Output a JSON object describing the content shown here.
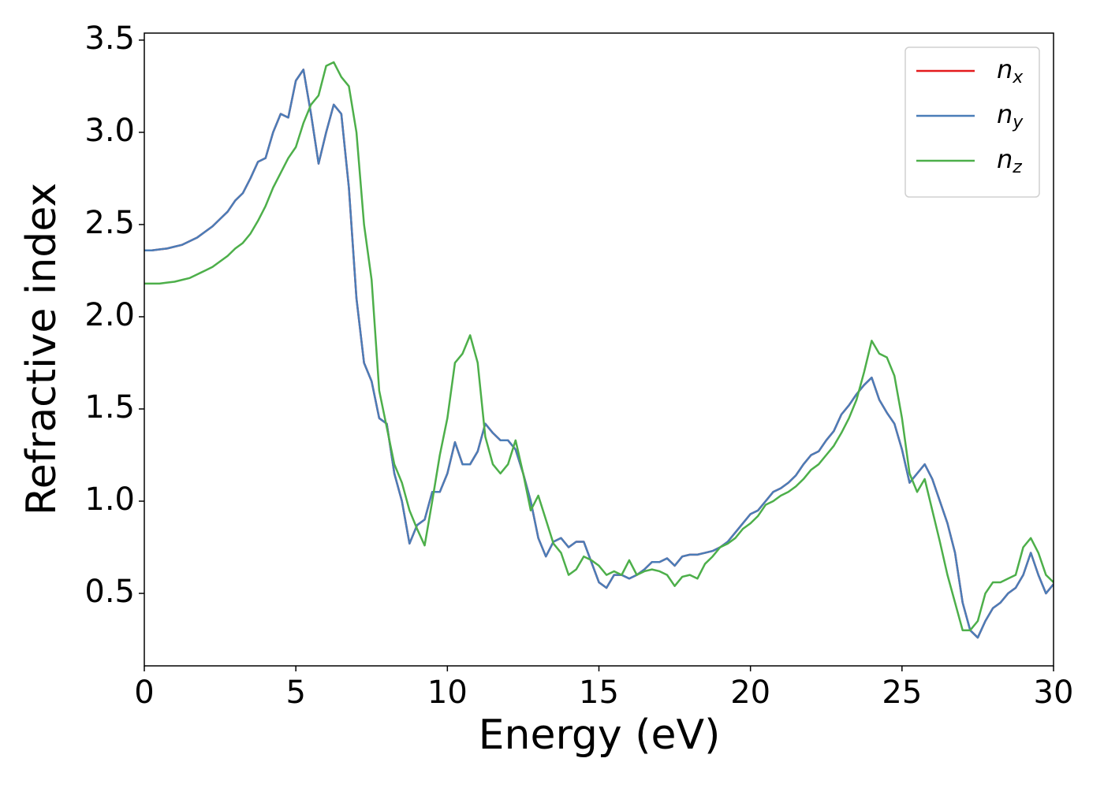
{
  "chart_data": {
    "type": "line",
    "xlabel": "Energy (eV)",
    "ylabel": "Refractive index",
    "x": [
      0,
      0.25,
      0.5,
      0.75,
      1,
      1.25,
      1.5,
      1.75,
      2,
      2.25,
      2.5,
      2.75,
      3,
      3.25,
      3.5,
      3.75,
      4,
      4.25,
      4.5,
      4.75,
      5,
      5.25,
      5.5,
      5.75,
      6,
      6.25,
      6.5,
      6.75,
      7,
      7.25,
      7.5,
      7.75,
      8,
      8.25,
      8.5,
      8.75,
      9,
      9.25,
      9.5,
      9.75,
      10,
      10.25,
      10.5,
      10.75,
      11,
      11.25,
      11.5,
      11.75,
      12,
      12.25,
      12.5,
      12.75,
      13,
      13.25,
      13.5,
      13.75,
      14,
      14.25,
      14.5,
      14.75,
      15,
      15.25,
      15.5,
      15.75,
      16,
      16.25,
      16.5,
      16.75,
      17,
      17.25,
      17.5,
      17.75,
      18,
      18.25,
      18.5,
      18.75,
      19,
      19.25,
      19.5,
      19.75,
      20,
      20.25,
      20.5,
      20.75,
      21,
      21.25,
      21.5,
      21.75,
      22,
      22.25,
      22.5,
      22.75,
      23,
      23.25,
      23.5,
      23.75,
      24,
      24.25,
      24.5,
      24.75,
      25,
      25.25,
      25.5,
      25.75,
      26,
      26.25,
      26.5,
      26.75,
      27,
      27.25,
      27.5,
      27.75,
      28,
      28.25,
      28.5,
      28.75,
      29,
      29.25,
      29.5,
      29.75,
      30
    ],
    "series": [
      {
        "name": "nx",
        "color": "#e41a1c",
        "values": [
          2.36,
          2.36,
          2.365,
          2.37,
          2.38,
          2.39,
          2.41,
          2.43,
          2.46,
          2.49,
          2.53,
          2.57,
          2.63,
          2.67,
          2.75,
          2.84,
          2.86,
          3.0,
          3.1,
          3.08,
          3.28,
          3.34,
          3.1,
          2.83,
          3.0,
          3.15,
          3.1,
          2.7,
          2.1,
          1.75,
          1.65,
          1.45,
          1.42,
          1.15,
          1.0,
          0.77,
          0.87,
          0.9,
          1.05,
          1.05,
          1.15,
          1.32,
          1.2,
          1.2,
          1.27,
          1.42,
          1.37,
          1.33,
          1.33,
          1.28,
          1.15,
          1.0,
          0.8,
          0.7,
          0.78,
          0.8,
          0.75,
          0.78,
          0.78,
          0.67,
          0.56,
          0.53,
          0.6,
          0.6,
          0.58,
          0.6,
          0.63,
          0.67,
          0.67,
          0.69,
          0.65,
          0.7,
          0.71,
          0.71,
          0.72,
          0.73,
          0.75,
          0.78,
          0.83,
          0.88,
          0.93,
          0.95,
          1.0,
          1.05,
          1.07,
          1.1,
          1.14,
          1.2,
          1.25,
          1.27,
          1.33,
          1.38,
          1.47,
          1.52,
          1.58,
          1.63,
          1.67,
          1.55,
          1.48,
          1.42,
          1.28,
          1.1,
          1.15,
          1.2,
          1.12,
          1.0,
          0.88,
          0.72,
          0.45,
          0.3,
          0.26,
          0.35,
          0.42,
          0.45,
          0.5,
          0.53,
          0.6,
          0.72,
          0.6,
          0.5,
          0.55
        ]
      },
      {
        "name": "ny",
        "color": "#4a7db8",
        "values": [
          2.36,
          2.36,
          2.365,
          2.37,
          2.38,
          2.39,
          2.41,
          2.43,
          2.46,
          2.49,
          2.53,
          2.57,
          2.63,
          2.67,
          2.75,
          2.84,
          2.86,
          3.0,
          3.1,
          3.08,
          3.28,
          3.34,
          3.1,
          2.83,
          3.0,
          3.15,
          3.1,
          2.7,
          2.1,
          1.75,
          1.65,
          1.45,
          1.42,
          1.15,
          1.0,
          0.77,
          0.87,
          0.9,
          1.05,
          1.05,
          1.15,
          1.32,
          1.2,
          1.2,
          1.27,
          1.42,
          1.37,
          1.33,
          1.33,
          1.28,
          1.15,
          1.0,
          0.8,
          0.7,
          0.78,
          0.8,
          0.75,
          0.78,
          0.78,
          0.67,
          0.56,
          0.53,
          0.6,
          0.6,
          0.58,
          0.6,
          0.63,
          0.67,
          0.67,
          0.69,
          0.65,
          0.7,
          0.71,
          0.71,
          0.72,
          0.73,
          0.75,
          0.78,
          0.83,
          0.88,
          0.93,
          0.95,
          1.0,
          1.05,
          1.07,
          1.1,
          1.14,
          1.2,
          1.25,
          1.27,
          1.33,
          1.38,
          1.47,
          1.52,
          1.58,
          1.63,
          1.67,
          1.55,
          1.48,
          1.42,
          1.28,
          1.1,
          1.15,
          1.2,
          1.12,
          1.0,
          0.88,
          0.72,
          0.45,
          0.3,
          0.26,
          0.35,
          0.42,
          0.45,
          0.5,
          0.53,
          0.6,
          0.72,
          0.6,
          0.5,
          0.55
        ]
      },
      {
        "name": "nz",
        "color": "#4daf4a",
        "values": [
          2.18,
          2.18,
          2.18,
          2.185,
          2.19,
          2.2,
          2.21,
          2.23,
          2.25,
          2.27,
          2.3,
          2.33,
          2.37,
          2.4,
          2.45,
          2.52,
          2.6,
          2.7,
          2.78,
          2.86,
          2.92,
          3.05,
          3.15,
          3.2,
          3.36,
          3.38,
          3.3,
          3.25,
          3.0,
          2.5,
          2.2,
          1.6,
          1.4,
          1.2,
          1.1,
          0.95,
          0.85,
          0.76,
          1.0,
          1.25,
          1.45,
          1.75,
          1.8,
          1.9,
          1.75,
          1.35,
          1.2,
          1.15,
          1.2,
          1.33,
          1.15,
          0.95,
          1.03,
          0.9,
          0.77,
          0.72,
          0.6,
          0.63,
          0.7,
          0.68,
          0.65,
          0.6,
          0.62,
          0.6,
          0.68,
          0.6,
          0.62,
          0.63,
          0.62,
          0.6,
          0.54,
          0.59,
          0.6,
          0.58,
          0.66,
          0.7,
          0.75,
          0.77,
          0.8,
          0.85,
          0.88,
          0.92,
          0.98,
          1.0,
          1.03,
          1.05,
          1.08,
          1.12,
          1.17,
          1.2,
          1.25,
          1.3,
          1.37,
          1.45,
          1.55,
          1.7,
          1.87,
          1.8,
          1.78,
          1.68,
          1.45,
          1.15,
          1.05,
          1.12,
          0.95,
          0.78,
          0.6,
          0.45,
          0.3,
          0.3,
          0.35,
          0.5,
          0.56,
          0.56,
          0.58,
          0.6,
          0.75,
          0.8,
          0.72,
          0.6,
          0.56
        ]
      }
    ],
    "xlim": [
      0,
      30
    ],
    "xticks": [
      0,
      5,
      10,
      15,
      20,
      25,
      30
    ],
    "ylim": [
      0.107,
      3.538
    ],
    "yticks": [
      {
        "value": 0.5,
        "label": "0.5"
      },
      {
        "value": 1.0,
        "label": "1.0"
      },
      {
        "value": 1.5,
        "label": "1.5"
      },
      {
        "value": 2.0,
        "label": "2.0"
      },
      {
        "value": 2.5,
        "label": "2.5"
      },
      {
        "value": 3.0,
        "label": "3.0"
      },
      {
        "value": 3.5,
        "label": "3.5"
      }
    ],
    "grid": false,
    "legend": "upper right"
  }
}
